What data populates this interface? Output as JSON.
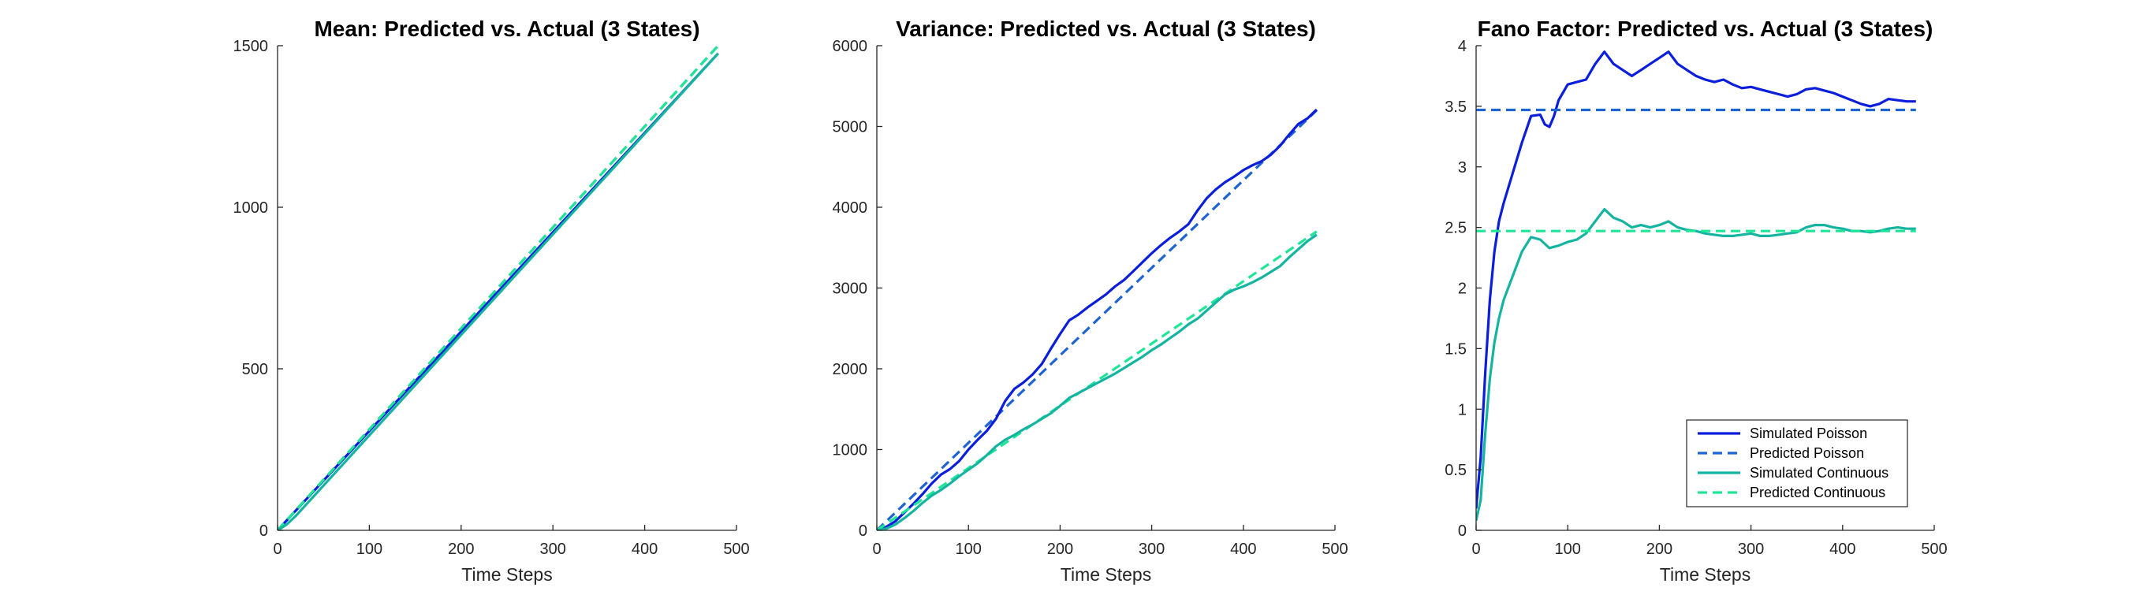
{
  "colors": {
    "simulated_poisson": "#0A1EDC",
    "predicted_poisson": "#1E64D2",
    "simulated_continuous": "#14B4A0",
    "predicted_continuous": "#1EE696",
    "axis": "#262626"
  },
  "chart_data": [
    {
      "type": "line",
      "title": "Mean: Predicted vs. Actual (3 States)",
      "xlabel": "Time Steps",
      "ylabel": "",
      "xlim": [
        0,
        500
      ],
      "ylim": [
        0,
        1500
      ],
      "xticks": [
        0,
        100,
        200,
        300,
        400,
        500
      ],
      "yticks": [
        0,
        500,
        1000,
        1500
      ],
      "grid": false,
      "series": [
        {
          "key": "predicted_poisson",
          "style": "dashed",
          "x": [
            0,
            480
          ],
          "y": [
            0,
            1500
          ]
        },
        {
          "key": "simulated_poisson",
          "style": "solid",
          "x": [
            0,
            480
          ],
          "y": [
            0,
            1476
          ]
        },
        {
          "key": "predicted_continuous",
          "style": "dashed",
          "x": [
            0,
            480
          ],
          "y": [
            0,
            1500
          ]
        },
        {
          "key": "simulated_continuous",
          "style": "solid",
          "x": [
            0,
            10,
            20,
            480
          ],
          "y": [
            0,
            18,
            45,
            1476
          ]
        }
      ]
    },
    {
      "type": "line",
      "title": "Variance: Predicted vs. Actual (3 States)",
      "xlabel": "Time Steps",
      "ylabel": "",
      "xlim": [
        0,
        500
      ],
      "ylim": [
        0,
        6000
      ],
      "xticks": [
        0,
        100,
        200,
        300,
        400,
        500
      ],
      "yticks": [
        0,
        1000,
        2000,
        3000,
        4000,
        5000,
        6000
      ],
      "grid": false,
      "series": [
        {
          "key": "predicted_poisson",
          "style": "dashed",
          "x": [
            0,
            480
          ],
          "y": [
            0,
            5200
          ]
        },
        {
          "key": "simulated_poisson",
          "style": "solid",
          "x": [
            0,
            10,
            20,
            30,
            40,
            50,
            60,
            70,
            80,
            90,
            100,
            110,
            120,
            130,
            140,
            150,
            160,
            170,
            180,
            190,
            200,
            210,
            220,
            230,
            240,
            250,
            260,
            270,
            280,
            290,
            300,
            310,
            320,
            330,
            340,
            350,
            360,
            370,
            380,
            390,
            400,
            410,
            420,
            430,
            440,
            450,
            460,
            470,
            480
          ],
          "y": [
            0,
            40,
            110,
            220,
            330,
            450,
            580,
            690,
            760,
            860,
            1000,
            1120,
            1230,
            1380,
            1600,
            1750,
            1830,
            1930,
            2060,
            2250,
            2430,
            2600,
            2670,
            2760,
            2840,
            2920,
            3020,
            3100,
            3210,
            3320,
            3430,
            3530,
            3620,
            3700,
            3790,
            3960,
            4110,
            4220,
            4310,
            4380,
            4460,
            4520,
            4570,
            4650,
            4760,
            4900,
            5030,
            5100,
            5210
          ]
        },
        {
          "key": "predicted_continuous",
          "style": "dashed",
          "x": [
            0,
            480
          ],
          "y": [
            0,
            3700
          ]
        },
        {
          "key": "simulated_continuous",
          "style": "solid",
          "x": [
            0,
            10,
            20,
            30,
            40,
            50,
            60,
            70,
            80,
            90,
            100,
            110,
            120,
            130,
            140,
            150,
            160,
            170,
            180,
            190,
            200,
            210,
            220,
            230,
            240,
            250,
            260,
            270,
            280,
            290,
            300,
            310,
            320,
            330,
            340,
            350,
            360,
            370,
            380,
            390,
            400,
            410,
            420,
            430,
            440,
            450,
            460,
            470,
            480
          ],
          "y": [
            0,
            20,
            70,
            150,
            240,
            340,
            430,
            500,
            580,
            670,
            750,
            830,
            930,
            1040,
            1120,
            1180,
            1250,
            1310,
            1380,
            1450,
            1540,
            1640,
            1700,
            1760,
            1820,
            1880,
            1940,
            2010,
            2080,
            2150,
            2230,
            2300,
            2380,
            2460,
            2550,
            2620,
            2720,
            2820,
            2920,
            2980,
            3020,
            3070,
            3130,
            3200,
            3270,
            3380,
            3480,
            3580,
            3660
          ]
        }
      ]
    },
    {
      "type": "line",
      "title": "Fano Factor: Predicted vs. Actual (3 States)",
      "xlabel": "Time Steps",
      "ylabel": "",
      "xlim": [
        0,
        500
      ],
      "ylim": [
        0,
        4
      ],
      "xticks": [
        0,
        100,
        200,
        300,
        400,
        500
      ],
      "yticks": [
        0,
        0.5,
        1,
        1.5,
        2,
        2.5,
        3,
        3.5,
        4
      ],
      "grid": false,
      "legend": {
        "position": "bottom-right",
        "entries": [
          "Simulated Poisson",
          "Predicted Poisson",
          "Simulated Continuous",
          "Predicted Continuous"
        ]
      },
      "series": [
        {
          "key": "simulated_poisson",
          "style": "solid",
          "name": "Simulated Poisson",
          "x": [
            0,
            5,
            10,
            15,
            20,
            25,
            30,
            40,
            50,
            60,
            70,
            75,
            80,
            85,
            90,
            100,
            110,
            120,
            130,
            140,
            150,
            160,
            170,
            180,
            190,
            200,
            210,
            220,
            230,
            240,
            250,
            260,
            270,
            280,
            290,
            300,
            310,
            320,
            330,
            340,
            350,
            360,
            370,
            380,
            390,
            400,
            410,
            420,
            430,
            440,
            450,
            460,
            470,
            480
          ],
          "y": [
            0.18,
            0.6,
            1.3,
            1.9,
            2.3,
            2.55,
            2.7,
            2.95,
            3.2,
            3.42,
            3.43,
            3.35,
            3.33,
            3.42,
            3.55,
            3.68,
            3.7,
            3.72,
            3.85,
            3.95,
            3.85,
            3.8,
            3.75,
            3.8,
            3.85,
            3.9,
            3.95,
            3.85,
            3.8,
            3.75,
            3.72,
            3.7,
            3.72,
            3.68,
            3.65,
            3.66,
            3.64,
            3.62,
            3.6,
            3.58,
            3.6,
            3.64,
            3.65,
            3.63,
            3.61,
            3.58,
            3.55,
            3.52,
            3.5,
            3.52,
            3.56,
            3.55,
            3.54,
            3.54
          ]
        },
        {
          "key": "predicted_poisson",
          "style": "dashed",
          "name": "Predicted Poisson",
          "x": [
            0,
            480
          ],
          "y": [
            3.47,
            3.47
          ]
        },
        {
          "key": "simulated_continuous",
          "style": "solid",
          "name": "Simulated Continuous",
          "x": [
            0,
            5,
            10,
            15,
            20,
            25,
            30,
            40,
            50,
            60,
            70,
            80,
            90,
            100,
            110,
            120,
            130,
            140,
            150,
            160,
            170,
            180,
            190,
            200,
            210,
            220,
            230,
            240,
            250,
            260,
            270,
            280,
            290,
            300,
            310,
            320,
            330,
            340,
            350,
            360,
            370,
            380,
            390,
            400,
            410,
            420,
            430,
            440,
            450,
            460,
            470,
            480
          ],
          "y": [
            0.08,
            0.25,
            0.8,
            1.25,
            1.55,
            1.75,
            1.9,
            2.1,
            2.3,
            2.42,
            2.4,
            2.33,
            2.35,
            2.38,
            2.4,
            2.45,
            2.55,
            2.65,
            2.58,
            2.55,
            2.5,
            2.52,
            2.5,
            2.52,
            2.55,
            2.5,
            2.48,
            2.47,
            2.45,
            2.44,
            2.43,
            2.43,
            2.44,
            2.45,
            2.43,
            2.43,
            2.44,
            2.45,
            2.46,
            2.5,
            2.52,
            2.52,
            2.5,
            2.49,
            2.47,
            2.47,
            2.46,
            2.47,
            2.49,
            2.5,
            2.49,
            2.49
          ]
        },
        {
          "key": "predicted_continuous",
          "style": "dashed",
          "name": "Predicted Continuous",
          "x": [
            0,
            480
          ],
          "y": [
            2.47,
            2.47
          ]
        }
      ]
    }
  ]
}
